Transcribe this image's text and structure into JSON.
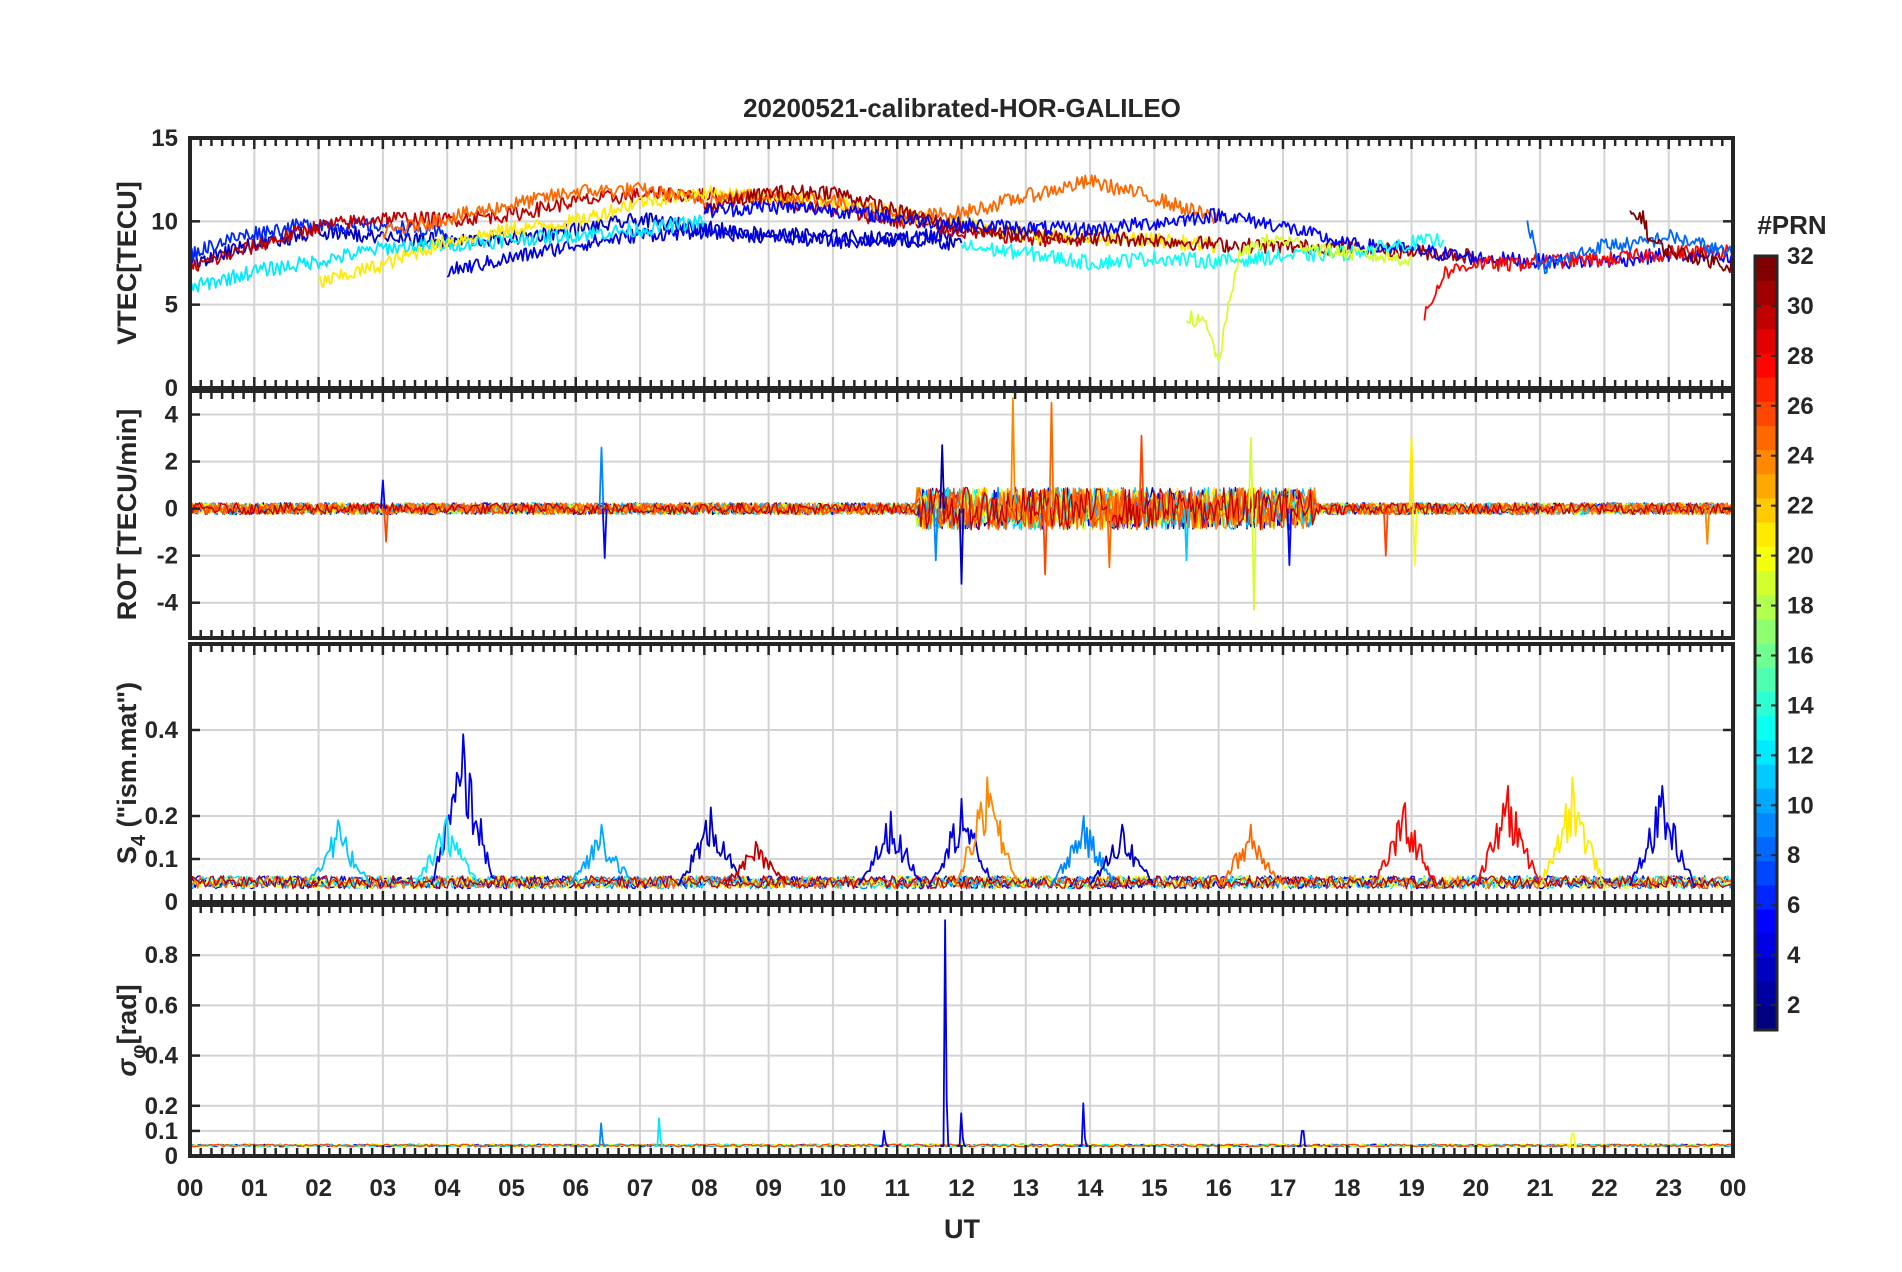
{
  "chart_data": {
    "type": "line",
    "title": "20200521-calibrated-HOR-GALILEO",
    "xlabel": "UT",
    "x_tick_labels": [
      "00",
      "01",
      "02",
      "03",
      "04",
      "05",
      "06",
      "07",
      "08",
      "09",
      "10",
      "11",
      "12",
      "13",
      "14",
      "15",
      "16",
      "17",
      "18",
      "19",
      "20",
      "21",
      "22",
      "23",
      "00"
    ],
    "x_range_hours": [
      0,
      24
    ],
    "grid": true,
    "colorbar": {
      "label": "#PRN",
      "range": [
        1,
        32
      ],
      "ticks": [
        2,
        4,
        6,
        8,
        10,
        12,
        14,
        16,
        18,
        20,
        22,
        24,
        26,
        28,
        30,
        32
      ],
      "colormap": "jet"
    },
    "panels": [
      {
        "id": "vtec",
        "ylabel": "VTEC[TECU]",
        "ylim": [
          0,
          15
        ],
        "yticks": [
          0,
          5,
          10,
          15
        ],
        "series": [
          {
            "prn": 3,
            "x": [
              0,
              1,
              2,
              3,
              4,
              5,
              6,
              7,
              8,
              9,
              10,
              11,
              12
            ],
            "y": [
              7.5,
              8.6,
              9.4,
              9.1,
              8.8,
              9.0,
              9.5,
              10.1,
              9.6,
              9.2,
              9.1,
              8.9,
              8.7
            ]
          },
          {
            "prn": 6,
            "x": [
              0,
              0.5,
              1,
              1.5,
              2,
              2.5,
              3,
              3.5,
              4
            ],
            "y": [
              8.0,
              8.8,
              9.3,
              9.6,
              9.9,
              9.7,
              9.8,
              9.5,
              9.2
            ]
          },
          {
            "prn": 4,
            "x": [
              4,
              5,
              6,
              7,
              8,
              9,
              10,
              11,
              12
            ],
            "y": [
              7.0,
              7.8,
              8.6,
              9.2,
              9.4,
              9.1,
              8.8,
              8.9,
              9.3
            ]
          },
          {
            "prn": 12,
            "x": [
              0,
              1,
              2,
              3,
              4,
              5,
              6,
              7,
              8
            ],
            "y": [
              6.0,
              7.0,
              7.6,
              8.4,
              8.6,
              8.9,
              9.2,
              9.5,
              10.0
            ]
          },
          {
            "prn": 30,
            "x": [
              0,
              1,
              2,
              3,
              4,
              5,
              6,
              7,
              8,
              9,
              10,
              11,
              12,
              13,
              14
            ],
            "y": [
              7.2,
              8.5,
              9.7,
              10.2,
              10.1,
              10.4,
              11.2,
              11.6,
              11.6,
              11.4,
              10.7,
              10.0,
              9.4,
              9.0,
              8.8
            ]
          },
          {
            "prn": 21,
            "x": [
              2,
              3,
              4,
              5,
              6,
              7,
              8,
              9,
              10,
              11,
              12,
              13,
              14,
              15,
              16
            ],
            "y": [
              6.3,
              7.4,
              8.8,
              9.5,
              10.0,
              11.2,
              11.7,
              11.5,
              11.2,
              10.5,
              9.9,
              9.2,
              9.0,
              8.9,
              8.5
            ]
          },
          {
            "prn": 25,
            "x": [
              3,
              4,
              5,
              6,
              7,
              8,
              9,
              10,
              11,
              12,
              13,
              14,
              15,
              16
            ],
            "y": [
              9.3,
              10.2,
              11.0,
              11.8,
              11.9,
              11.3,
              11.6,
              11.3,
              10.2,
              10.5,
              11.5,
              12.4,
              11.4,
              10.1
            ]
          },
          {
            "prn": 31,
            "x": [
              8,
              9,
              10,
              11,
              12,
              13,
              14,
              15,
              16,
              17,
              18,
              19,
              20
            ],
            "y": [
              10.8,
              11.7,
              11.8,
              10.6,
              9.6,
              9.2,
              9.0,
              8.9,
              8.6,
              8.5,
              8.4,
              8.2,
              7.9
            ]
          },
          {
            "prn": 5,
            "x": [
              8,
              9,
              10,
              11,
              12,
              13,
              14,
              15,
              16,
              17,
              18,
              19,
              20,
              21,
              22,
              23,
              24
            ],
            "y": [
              10.6,
              10.9,
              10.7,
              10.2,
              9.8,
              9.6,
              9.5,
              9.9,
              10.4,
              9.7,
              8.6,
              8.3,
              7.8,
              7.6,
              7.6,
              8.0,
              7.7
            ]
          },
          {
            "prn": 13,
            "x": [
              12,
              13,
              14,
              15,
              16,
              17,
              18,
              19,
              19.5
            ],
            "y": [
              8.5,
              8.1,
              7.5,
              7.8,
              7.6,
              7.9,
              8.1,
              8.7,
              8.9
            ]
          },
          {
            "prn": 19,
            "x": [
              15.5,
              15.8,
              16,
              16.3,
              16.6,
              17,
              17.5,
              18,
              18.5,
              19
            ],
            "y": [
              4.3,
              3.8,
              1.6,
              7.8,
              8.7,
              8.9,
              8.4,
              8.1,
              7.9,
              7.7
            ]
          },
          {
            "prn": 28,
            "x": [
              19.2,
              19.5,
              20,
              20.5,
              21,
              22,
              23,
              24
            ],
            "y": [
              4.2,
              6.9,
              7.5,
              7.4,
              7.6,
              7.7,
              8.1,
              8.3
            ]
          },
          {
            "prn": 8,
            "x": [
              20.8,
              21,
              21.5,
              22,
              22.5,
              23,
              23.5,
              24
            ],
            "y": [
              10.2,
              7.2,
              7.9,
              8.6,
              8.6,
              9.1,
              8.6,
              8.0
            ]
          },
          {
            "prn": 32,
            "x": [
              22.4,
              22.6,
              22.7,
              23,
              23.5,
              24
            ],
            "y": [
              10.4,
              10.3,
              8.9,
              8.2,
              7.8,
              7.3
            ]
          }
        ]
      },
      {
        "id": "rot",
        "ylabel": "ROT [TECU/min]",
        "ylim": [
          -5.5,
          5
        ],
        "yticks": [
          -4,
          -2,
          0,
          2,
          4
        ],
        "spikes": [
          {
            "prn": 5,
            "x": 3.0,
            "y": 1.2
          },
          {
            "prn": 26,
            "x": 3.05,
            "y": -1.4
          },
          {
            "prn": 9,
            "x": 6.4,
            "y": 2.6
          },
          {
            "prn": 5,
            "x": 6.45,
            "y": -2.1
          },
          {
            "prn": 2,
            "x": 11.7,
            "y": 2.7
          },
          {
            "prn": 9,
            "x": 11.6,
            "y": -2.2
          },
          {
            "prn": 3,
            "x": 12.0,
            "y": -3.2
          },
          {
            "prn": 24,
            "x": 12.8,
            "y": 4.7
          },
          {
            "prn": 25,
            "x": 13.4,
            "y": 4.5
          },
          {
            "prn": 26,
            "x": 13.3,
            "y": -2.8
          },
          {
            "prn": 25,
            "x": 14.3,
            "y": -2.5
          },
          {
            "prn": 26,
            "x": 14.8,
            "y": 3.1
          },
          {
            "prn": 11,
            "x": 15.5,
            "y": -2.2
          },
          {
            "prn": 19,
            "x": 16.5,
            "y": 3.0
          },
          {
            "prn": 19,
            "x": 16.55,
            "y": -4.3
          },
          {
            "prn": 5,
            "x": 17.1,
            "y": -2.4
          },
          {
            "prn": 26,
            "x": 18.6,
            "y": -2.0
          },
          {
            "prn": 21,
            "x": 19.0,
            "y": 3.0
          },
          {
            "prn": 20,
            "x": 19.05,
            "y": -2.4
          },
          {
            "prn": 24,
            "x": 23.6,
            "y": -1.5
          }
        ]
      },
      {
        "id": "s4",
        "ylabel": "S4 (\"ism.mat\")",
        "ylabel_main": "S",
        "ylabel_sub": "4",
        "ylabel_rest": " (\"ism.mat\")",
        "ylim": [
          0,
          0.6
        ],
        "yticks": [
          0,
          0.1,
          0.2,
          0.4
        ],
        "peaks": [
          {
            "prn": 11,
            "x": 2.3,
            "y": 0.19
          },
          {
            "prn": 4,
            "x": 4.25,
            "y": 0.39
          },
          {
            "prn": 12,
            "x": 4.0,
            "y": 0.2
          },
          {
            "prn": 10,
            "x": 6.4,
            "y": 0.18
          },
          {
            "prn": 3,
            "x": 8.1,
            "y": 0.22
          },
          {
            "prn": 30,
            "x": 8.8,
            "y": 0.14
          },
          {
            "prn": 4,
            "x": 10.9,
            "y": 0.21
          },
          {
            "prn": 4,
            "x": 12.0,
            "y": 0.24
          },
          {
            "prn": 24,
            "x": 12.4,
            "y": 0.29
          },
          {
            "prn": 9,
            "x": 13.9,
            "y": 0.2
          },
          {
            "prn": 3,
            "x": 14.5,
            "y": 0.18
          },
          {
            "prn": 25,
            "x": 16.5,
            "y": 0.18
          },
          {
            "prn": 28,
            "x": 18.9,
            "y": 0.23
          },
          {
            "prn": 28,
            "x": 20.5,
            "y": 0.27
          },
          {
            "prn": 21,
            "x": 21.5,
            "y": 0.29
          },
          {
            "prn": 4,
            "x": 22.9,
            "y": 0.27
          }
        ]
      },
      {
        "id": "sigma",
        "ylabel": "σφ[rad]",
        "ylabel_main": "σ",
        "ylabel_sub": "φ",
        "ylabel_rest": "[rad]",
        "ylim": [
          0,
          1
        ],
        "yticks": [
          0,
          0.1,
          0.2,
          0.4,
          0.6,
          0.8
        ],
        "peaks": [
          {
            "prn": 4,
            "x": 11.75,
            "y": 0.94
          },
          {
            "prn": 4,
            "x": 12.0,
            "y": 0.17
          },
          {
            "prn": 5,
            "x": 13.9,
            "y": 0.21
          },
          {
            "prn": 12,
            "x": 7.3,
            "y": 0.15
          },
          {
            "prn": 9,
            "x": 6.4,
            "y": 0.13
          },
          {
            "prn": 5,
            "x": 10.8,
            "y": 0.1
          },
          {
            "prn": 5,
            "x": 17.3,
            "y": 0.1
          },
          {
            "prn": 20,
            "x": 21.5,
            "y": 0.09
          }
        ]
      }
    ]
  }
}
